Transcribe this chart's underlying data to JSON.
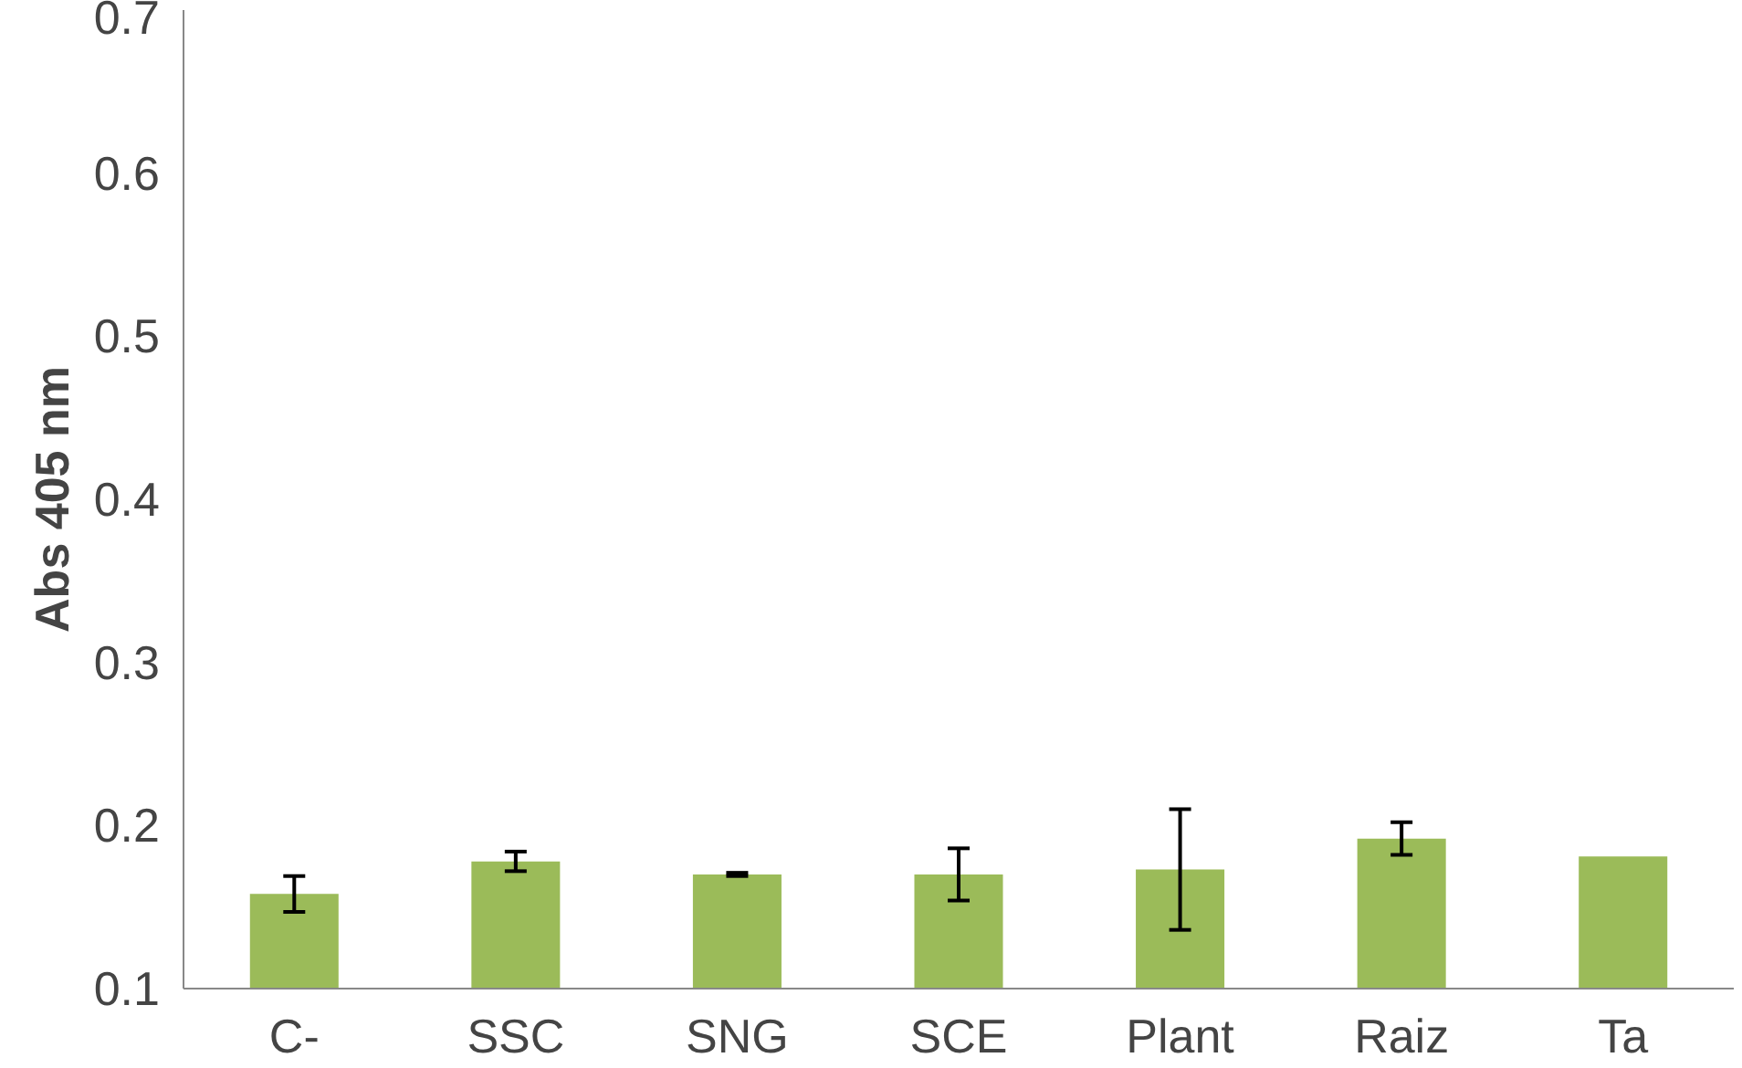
{
  "chart_data": {
    "type": "bar",
    "ylabel": "Abs 405 nm",
    "categories": [
      "C-",
      "SSC",
      "SNG",
      "SCE",
      "Plant",
      "Raiz",
      "Ta"
    ],
    "values": [
      0.158,
      0.178,
      0.17,
      0.17,
      0.173,
      0.192,
      0.181
    ],
    "errors": [
      0.011,
      0.006,
      0.001,
      0.016,
      0.037,
      0.01,
      null
    ],
    "color": "#9bbb59",
    "ylim": [
      0.1,
      0.7
    ],
    "yticks": [
      0.1,
      0.2,
      0.3,
      0.4,
      0.5,
      0.6,
      0.7
    ],
    "grid": false
  }
}
